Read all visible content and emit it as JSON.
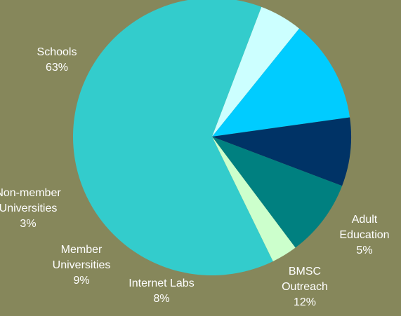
{
  "chart_data": {
    "type": "pie",
    "slices": [
      {
        "name_lines": [
          "Schools"
        ],
        "pct": "63%",
        "value": 63,
        "color": "#33cccc"
      },
      {
        "name_lines": [
          "Adult",
          "Education"
        ],
        "pct": "5%",
        "value": 5,
        "color": "#ccffff"
      },
      {
        "name_lines": [
          "BMSC",
          "Outreach"
        ],
        "pct": "12%",
        "value": 12,
        "color": "#00ccff"
      },
      {
        "name_lines": [
          "Internet Labs"
        ],
        "pct": "8%",
        "value": 8,
        "color": "#003366"
      },
      {
        "name_lines": [
          "Member",
          "Universities"
        ],
        "pct": "9%",
        "value": 9,
        "color": "#008080"
      },
      {
        "name_lines": [
          "Non-member",
          "Universities"
        ],
        "pct": "3%",
        "value": 3,
        "color": "#ccffcc"
      }
    ]
  },
  "background": "#86875b"
}
